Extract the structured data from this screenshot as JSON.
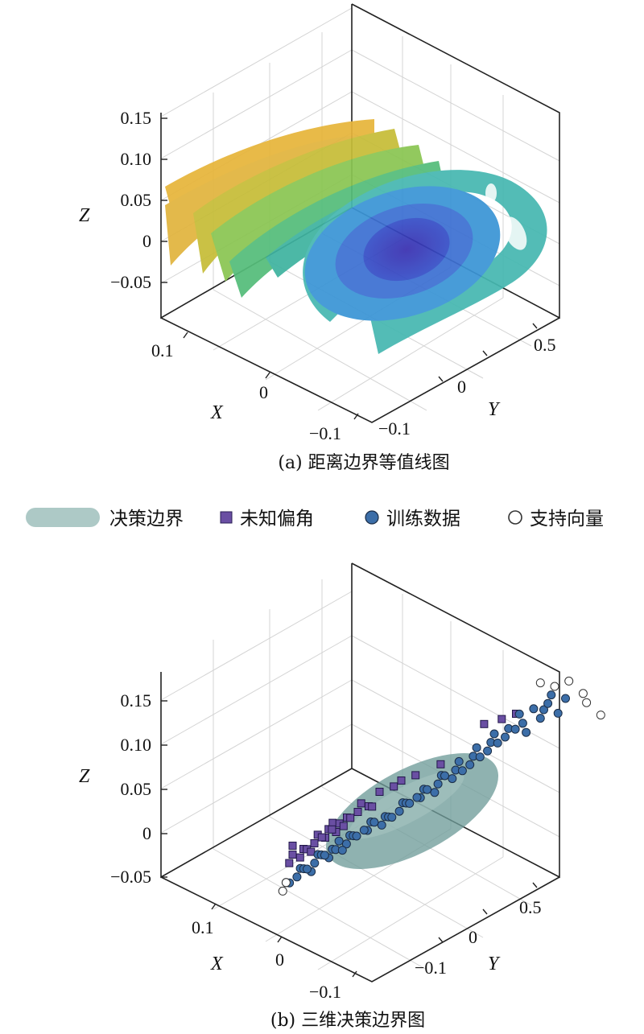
{
  "chart_data": [
    {
      "type": "surface3d",
      "caption": "(a) 距离边界等值线图",
      "zlabel": "Z",
      "xlabel": "X",
      "ylabel": "Y",
      "zticks": [
        "0.15",
        "0.10",
        "0.05",
        "0",
        "−0.05"
      ],
      "xticks": [
        "0.1",
        "0",
        "−0.1"
      ],
      "yticks": [
        "−0.1",
        "0",
        "0.5"
      ],
      "contour_levels": [
        {
          "color": "#e8b53a"
        },
        {
          "color": "#b9c53a"
        },
        {
          "color": "#6cc26a"
        },
        {
          "color": "#3fb79c"
        },
        {
          "color": "#3a9fcc"
        },
        {
          "color": "#3c7ad4"
        },
        {
          "color": "#3a4fc4"
        }
      ]
    },
    {
      "type": "scatter3d",
      "caption": "(b) 三维决策边界图",
      "zlabel": "Z",
      "xlabel": "X",
      "ylabel": "Y",
      "zticks": [
        "0.15",
        "0.10",
        "0.05",
        "0",
        "−0.05"
      ],
      "xticks": [
        "0.1",
        "0",
        "−0.1"
      ],
      "yticks": [
        "−0.1",
        "0",
        "0.5"
      ],
      "legend": {
        "position": "top",
        "items": [
          {
            "label": "决策边界",
            "color": "#9fbfbc",
            "marker": "band"
          },
          {
            "label": "未知偏角",
            "color": "#6a4fa3",
            "marker": "square"
          },
          {
            "label": "训练数据",
            "color": "#3c6ea8",
            "marker": "circle"
          },
          {
            "label": "支持向量",
            "color": "#ffffff",
            "marker": "hollow-circle"
          }
        ]
      },
      "series": [
        {
          "name": "未知偏角",
          "points": [
            [
              0.11,
              0.1,
              0.05
            ],
            [
              0.11,
              0.09,
              0.04
            ],
            [
              0.1,
              0.1,
              0.05
            ],
            [
              0.1,
              0.09,
              0.04
            ],
            [
              0.1,
              0.11,
              0.05
            ],
            [
              0.09,
              0.1,
              0.05
            ],
            [
              0.09,
              0.09,
              0.04
            ],
            [
              0.09,
              0.11,
              0.06
            ],
            [
              0.08,
              0.1,
              0.05
            ],
            [
              0.08,
              0.09,
              0.05
            ],
            [
              0.08,
              0.11,
              0.06
            ],
            [
              0.07,
              0.1,
              0.05
            ],
            [
              0.07,
              0.09,
              0.06
            ],
            [
              0.07,
              0.11,
              0.06
            ],
            [
              0.06,
              0.1,
              0.06
            ],
            [
              0.06,
              0.09,
              0.05
            ],
            [
              0.06,
              0.11,
              0.06
            ],
            [
              0.05,
              0.1,
              0.06
            ],
            [
              0.05,
              0.11,
              0.07
            ],
            [
              0.04,
              0.1,
              0.06
            ],
            [
              0.04,
              0.11,
              0.06
            ],
            [
              0.03,
              0.1,
              0.07
            ],
            [
              0.02,
              0.11,
              0.07
            ],
            [
              0.01,
              0.1,
              0.07
            ],
            [
              0.0,
              0.11,
              0.07
            ],
            [
              0.11,
              0.1,
              0.06
            ],
            [
              -0.02,
              0.12,
              0.07
            ],
            [
              0.08,
              0.12,
              0.06
            ],
            [
              -0.06,
              0.12,
              0.09
            ],
            [
              -0.07,
              0.14,
              0.09
            ],
            [
              -0.08,
              0.15,
              0.09
            ]
          ]
        },
        {
          "name": "训练数据",
          "points": [
            [
              0.05,
              -0.08,
              -0.02
            ],
            [
              0.05,
              -0.07,
              -0.01
            ],
            [
              0.04,
              -0.06,
              -0.01
            ],
            [
              0.04,
              -0.05,
              0.0
            ],
            [
              0.03,
              -0.04,
              0.0
            ],
            [
              0.03,
              -0.03,
              0.0
            ],
            [
              0.02,
              -0.02,
              0.01
            ],
            [
              0.02,
              -0.01,
              0.01
            ],
            [
              0.01,
              0.0,
              0.01
            ],
            [
              0.01,
              0.01,
              0.02
            ],
            [
              0.0,
              0.02,
              0.02
            ],
            [
              0.0,
              0.03,
              0.02
            ],
            [
              -0.01,
              0.04,
              0.03
            ],
            [
              -0.01,
              0.05,
              0.03
            ],
            [
              -0.02,
              0.06,
              0.03
            ],
            [
              -0.02,
              0.07,
              0.04
            ],
            [
              -0.03,
              0.08,
              0.04
            ],
            [
              -0.03,
              0.09,
              0.05
            ],
            [
              -0.04,
              0.1,
              0.05
            ],
            [
              -0.04,
              0.11,
              0.06
            ],
            [
              -0.05,
              0.12,
              0.06
            ],
            [
              -0.05,
              0.13,
              0.07
            ],
            [
              -0.06,
              0.14,
              0.07
            ],
            [
              -0.06,
              0.15,
              0.08
            ],
            [
              -0.07,
              0.16,
              0.08
            ],
            [
              0.04,
              -0.07,
              -0.02
            ],
            [
              0.03,
              -0.05,
              -0.01
            ],
            [
              0.02,
              -0.03,
              0.0
            ],
            [
              0.01,
              -0.01,
              0.01
            ],
            [
              0.0,
              0.01,
              0.01
            ],
            [
              -0.01,
              0.03,
              0.02
            ],
            [
              -0.02,
              0.05,
              0.03
            ],
            [
              -0.03,
              0.07,
              0.03
            ],
            [
              -0.04,
              0.09,
              0.04
            ],
            [
              -0.05,
              0.11,
              0.05
            ],
            [
              -0.06,
              0.13,
              0.06
            ],
            [
              -0.07,
              0.15,
              0.07
            ],
            [
              -0.08,
              0.17,
              0.08
            ],
            [
              -0.08,
              0.18,
              0.07
            ],
            [
              -0.09,
              0.19,
              0.08
            ],
            [
              0.05,
              -0.06,
              -0.01
            ],
            [
              0.04,
              -0.04,
              0.0
            ],
            [
              0.03,
              -0.02,
              0.01
            ],
            [
              0.02,
              0.0,
              0.01
            ],
            [
              0.01,
              0.02,
              0.02
            ],
            [
              0.0,
              0.04,
              0.02
            ],
            [
              -0.01,
              0.06,
              0.03
            ],
            [
              -0.02,
              0.08,
              0.04
            ],
            [
              -0.03,
              0.1,
              0.05
            ],
            [
              -0.04,
              0.12,
              0.05
            ],
            [
              -0.05,
              0.14,
              0.06
            ],
            [
              -0.06,
              0.16,
              0.07
            ],
            [
              -0.07,
              0.18,
              0.08
            ],
            [
              -0.09,
              0.2,
              0.09
            ],
            [
              -0.1,
              0.21,
              0.08
            ],
            [
              0.06,
              -0.08,
              -0.02
            ],
            [
              0.06,
              -0.07,
              -0.02
            ],
            [
              0.05,
              -0.05,
              -0.01
            ],
            [
              0.04,
              -0.03,
              0.0
            ],
            [
              0.03,
              -0.01,
              0.0
            ],
            [
              -0.08,
              0.16,
              0.09
            ],
            [
              -0.09,
              0.17,
              0.09
            ],
            [
              -0.1,
              0.18,
              0.09
            ],
            [
              -0.1,
              0.19,
              0.1
            ],
            [
              -0.11,
              0.2,
              0.09
            ]
          ]
        },
        {
          "name": "支持向量",
          "points": [
            [
              0.06,
              -0.09,
              -0.03
            ],
            [
              0.06,
              -0.08,
              -0.02
            ],
            [
              -0.1,
              0.2,
              0.11
            ],
            [
              -0.11,
              0.21,
              0.11
            ],
            [
              -0.12,
              0.22,
              0.09
            ],
            [
              -0.12,
              0.23,
              0.08
            ],
            [
              -0.13,
              0.24,
              0.06
            ],
            [
              -0.09,
              0.19,
              0.12
            ]
          ]
        }
      ]
    }
  ]
}
